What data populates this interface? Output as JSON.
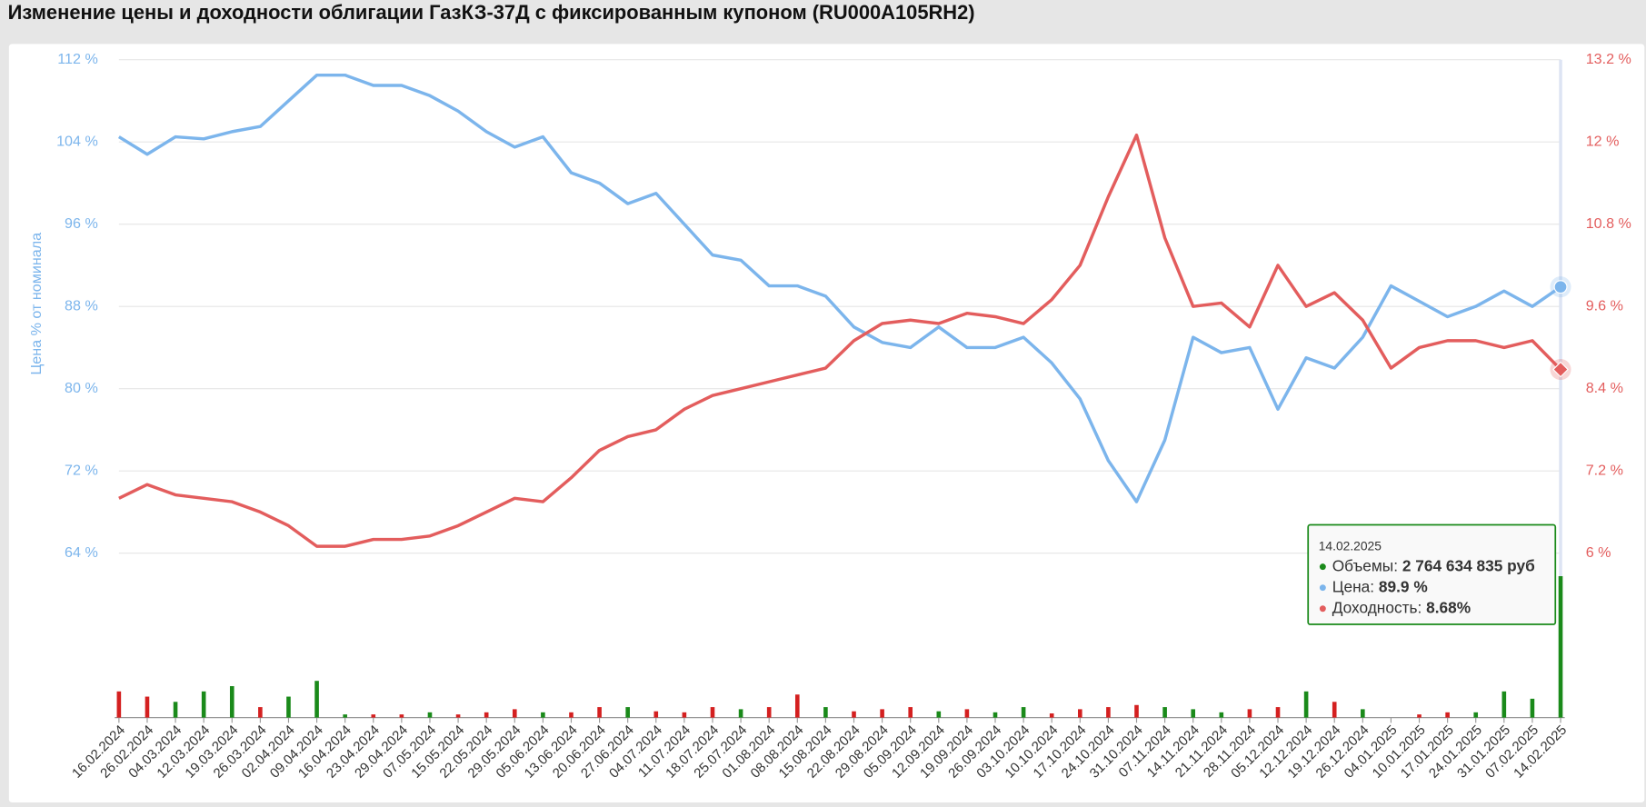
{
  "chart_data": {
    "type": "line",
    "title": "Изменение цены и доходности облигации ГазКЗ-37Д с фиксированным купоном (RU000A105RH2)",
    "y_label": "Цена % от номинала",
    "x": [
      "16.02.2024",
      "26.02.2024",
      "04.03.2024",
      "12.03.2024",
      "19.03.2024",
      "26.03.2024",
      "02.04.2024",
      "09.04.2024",
      "16.04.2024",
      "23.04.2024",
      "29.04.2024",
      "07.05.2024",
      "15.05.2024",
      "22.05.2024",
      "29.05.2024",
      "05.06.2024",
      "13.06.2024",
      "20.06.2024",
      "27.06.2024",
      "04.07.2024",
      "11.07.2024",
      "18.07.2024",
      "25.07.2024",
      "01.08.2024",
      "08.08.2024",
      "15.08.2024",
      "22.08.2024",
      "29.08.2024",
      "05.09.2024",
      "12.09.2024",
      "19.09.2024",
      "26.09.2024",
      "03.10.2024",
      "10.10.2024",
      "17.10.2024",
      "24.10.2024",
      "31.10.2024",
      "07.11.2024",
      "14.11.2024",
      "21.11.2024",
      "28.11.2024",
      "05.12.2024",
      "12.12.2024",
      "19.12.2024",
      "26.12.2024",
      "04.01.2025",
      "10.01.2025",
      "17.01.2025",
      "24.01.2025",
      "31.01.2025",
      "07.02.2025",
      "14.02.2025"
    ],
    "series": [
      {
        "name": "Цена",
        "color": "#7cb5ec",
        "values": [
          104.5,
          102.8,
          104.5,
          104.3,
          105,
          105.5,
          108,
          110.5,
          110.5,
          109.5,
          109.5,
          108.5,
          107,
          105,
          103.5,
          104.5,
          101,
          100,
          98,
          99,
          96,
          93,
          92.5,
          90,
          90,
          89,
          86,
          84.5,
          84,
          86,
          84,
          84,
          85,
          82.5,
          79,
          73,
          69,
          75,
          85,
          83.5,
          84,
          78,
          83,
          82,
          85,
          90,
          88.5,
          87,
          88,
          89.5,
          88,
          89.9
        ]
      },
      {
        "name": "Доходность",
        "color": "#e35d5d",
        "axis": "y2",
        "values": [
          6.8,
          7.0,
          6.85,
          6.8,
          6.75,
          6.6,
          6.4,
          6.1,
          6.1,
          6.2,
          6.2,
          6.25,
          6.4,
          6.6,
          6.8,
          6.75,
          7.1,
          7.5,
          7.7,
          7.8,
          8.1,
          8.3,
          8.4,
          8.5,
          8.6,
          8.7,
          9.1,
          9.35,
          9.4,
          9.35,
          9.5,
          9.45,
          9.35,
          9.7,
          10.2,
          11.2,
          12.1,
          10.6,
          9.6,
          9.65,
          9.3,
          10.2,
          9.6,
          9.8,
          9.4,
          8.7,
          9.0,
          9.1,
          9.1,
          9.0,
          9.1,
          8.68
        ]
      },
      {
        "name": "Объемы",
        "type": "bar",
        "values": [
          512000000,
          410000000,
          308000000,
          512000000,
          615000000,
          205000000,
          410000000,
          718000000,
          62000000,
          62000000,
          62000000,
          103000000,
          62000000,
          103000000,
          164000000,
          103000000,
          103000000,
          205000000,
          205000000,
          123000000,
          103000000,
          205000000,
          164000000,
          205000000,
          451000000,
          205000000,
          123000000,
          164000000,
          205000000,
          123000000,
          164000000,
          103000000,
          205000000,
          82000000,
          164000000,
          205000000,
          246000000,
          205000000,
          164000000,
          103000000,
          164000000,
          205000000,
          512000000,
          308000000,
          164000000,
          0,
          62000000,
          103000000,
          103000000,
          512000000,
          369000000,
          2764634835
        ],
        "colors": [
          "#d42020",
          "#d42020",
          "#1a8a1a",
          "#1a8a1a",
          "#1a8a1a",
          "#d42020",
          "#1a8a1a",
          "#1a8a1a",
          "#1a8a1a",
          "#d42020",
          "#d42020",
          "#1a8a1a",
          "#d42020",
          "#d42020",
          "#d42020",
          "#1a8a1a",
          "#d42020",
          "#d42020",
          "#1a8a1a",
          "#d42020",
          "#d42020",
          "#d42020",
          "#1a8a1a",
          "#d42020",
          "#d42020",
          "#1a8a1a",
          "#d42020",
          "#d42020",
          "#d42020",
          "#1a8a1a",
          "#d42020",
          "#1a8a1a",
          "#1a8a1a",
          "#d42020",
          "#d42020",
          "#d42020",
          "#d42020",
          "#1a8a1a",
          "#1a8a1a",
          "#1a8a1a",
          "#d42020",
          "#d42020",
          "#1a8a1a",
          "#d42020",
          "#1a8a1a",
          "#1a8a1a",
          "#d42020",
          "#d42020",
          "#1a8a1a",
          "#1a8a1a",
          "#1a8a1a",
          "#1a8a1a"
        ]
      }
    ],
    "ylim": [
      64,
      112
    ],
    "yticks": [
      {
        "value": 64,
        "label": "64 %"
      },
      {
        "value": 72,
        "label": "72 %"
      },
      {
        "value": 80,
        "label": "80 %"
      },
      {
        "value": 88,
        "label": "88 %"
      },
      {
        "value": 96,
        "label": "96 %"
      },
      {
        "value": 104,
        "label": "104 %"
      },
      {
        "value": 112,
        "label": "112 %"
      }
    ],
    "y2lim": [
      6,
      13.2
    ],
    "y2ticks": [
      {
        "value": 6,
        "label": "6 %"
      },
      {
        "value": 7.2,
        "label": "7.2 %"
      },
      {
        "value": 8.4,
        "label": "8.4 %"
      },
      {
        "value": 9.6,
        "label": "9.6 %"
      },
      {
        "value": 10.8,
        "label": "10.8 %"
      },
      {
        "value": 12,
        "label": "12 %"
      },
      {
        "value": 13.2,
        "label": "13.2 %"
      }
    ],
    "grid": true,
    "tooltip": {
      "date": "14.02.2025",
      "rows": [
        {
          "name": "Объемы:",
          "value": "2 764 634 835 руб",
          "color": "#1a8a1a"
        },
        {
          "name": "Цена:",
          "value": "89.9 %",
          "color": "#7cb5ec"
        },
        {
          "name": "Доходность:",
          "value": "8.68%",
          "color": "#e35d5d"
        }
      ]
    }
  }
}
